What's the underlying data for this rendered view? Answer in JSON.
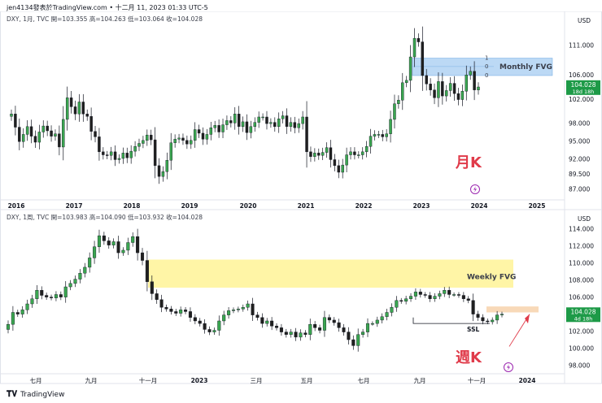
{
  "header": {
    "text": "jen4134發表於TradingView.com • 十二月 11, 2023 01:33 UTC-5"
  },
  "footer": {
    "brand": "TradingView"
  },
  "colors": {
    "up": "#26a69a",
    "upFill": "#3aa650",
    "down": "#1f1f1f",
    "lastBadge": "#1d9a47",
    "fvgMonthly": "#bcd9f5",
    "fvgWeekly": "#fff5a6",
    "annotation": "#e03b4a",
    "target": "#f8d9b8"
  },
  "chart_data": [
    {
      "type": "candlestick",
      "title": "DXY, 1月, TVC",
      "ohlc_label": "開=103.355 高=104.263 低=103.064 收=104.028",
      "axis_currency": "USD",
      "y_ticks": [
        "111.000",
        "106.000",
        "102.000",
        "98.000",
        "95.000",
        "92.000",
        "89.500",
        "87.000"
      ],
      "x_ticks": [
        "2016",
        "2017",
        "2018",
        "2019",
        "2020",
        "2021",
        "2022",
        "2023",
        "2024",
        "2025"
      ],
      "last_price": "104.028",
      "countdown": "18d 18h",
      "zone_label": "Monthly FVG",
      "fib_levels": [
        "1",
        "0",
        "0"
      ],
      "annotation": "月K",
      "close_series": [
        99.5,
        97.3,
        94.9,
        96.1,
        97.4,
        95.8,
        94.8,
        96.5,
        97.5,
        96.7,
        95.8,
        96.2,
        94.0,
        98.6,
        102.2,
        100.7,
        99.5,
        101.5,
        99.5,
        99.1,
        96.6,
        95.7,
        93.2,
        92.7,
        92.6,
        93.2,
        91.9,
        92.1,
        93.0,
        92.2,
        93.3,
        94.1,
        94.6,
        95.1,
        96.0,
        95.2,
        90.9,
        89.1,
        89.9,
        91.8,
        94.7,
        95.3,
        95.5,
        95.1,
        94.5,
        95.1,
        96.9,
        96.3,
        95.3,
        96.1,
        97.2,
        97.6,
        96.5,
        97.7,
        98.4,
        98.0,
        99.5,
        97.4,
        98.2,
        96.4,
        97.4,
        98.1,
        99.0,
        99.0,
        97.9,
        98.1,
        97.4,
        98.7,
        99.2,
        97.4,
        98.1,
        97.2,
        97.9,
        99.0,
        93.2,
        92.4,
        93.0,
        92.6,
        93.1,
        93.9,
        91.9,
        90.9,
        89.8,
        91.0,
        92.7,
        93.2,
        92.7,
        92.7,
        93.2,
        94.1,
        95.8,
        96.1,
        96.1,
        95.7,
        96.2,
        98.6,
        101.2,
        101.8,
        104.7,
        105.1,
        109.0,
        112.1,
        111.5,
        105.9,
        104.5,
        103.5,
        102.2,
        104.9,
        102.5,
        103.4,
        104.6,
        102.9,
        101.9,
        103.3,
        106.0,
        106.6,
        103.5,
        104.0
      ]
    },
    {
      "type": "candlestick",
      "title": "DXY, 1周, TVC",
      "ohlc_label": "開=103.983 高=104.090 低=103.932 收=104.028",
      "axis_currency": "USD",
      "y_ticks": [
        "114.000",
        "112.000",
        "110.000",
        "108.000",
        "106.000",
        "104.000",
        "102.000",
        "100.000",
        "98.000"
      ],
      "x_ticks": [
        "七月",
        "九月",
        "十一月",
        "2023",
        "三月",
        "五月",
        "七月",
        "九月",
        "十一月",
        "2024"
      ],
      "last_price": "104.028",
      "countdown": "4d 18h",
      "zone_label": "Weekly FVG",
      "ssl_label": "SSL",
      "annotation": "週K",
      "close_series": [
        102.8,
        104.2,
        104.0,
        104.5,
        105.2,
        105.8,
        106.8,
        106.2,
        106.0,
        105.9,
        106.3,
        106.0,
        107.2,
        107.6,
        108.1,
        108.8,
        109.5,
        110.6,
        111.9,
        113.2,
        112.6,
        112.1,
        112.5,
        111.2,
        111.5,
        112.4,
        113.1,
        111.2,
        110.3,
        107.8,
        106.4,
        105.7,
        104.8,
        104.6,
        104.3,
        104.1,
        104.5,
        104.3,
        103.6,
        103.2,
        102.9,
        102.2,
        101.9,
        102.1,
        103.2,
        103.9,
        104.4,
        104.5,
        104.6,
        104.8,
        105.2,
        103.9,
        103.6,
        102.9,
        103.2,
        102.6,
        102.4,
        101.9,
        101.6,
        101.9,
        101.3,
        101.8,
        101.6,
        102.8,
        102.4,
        102.1,
        103.6,
        103.3,
        103.0,
        102.4,
        101.9,
        101.0,
        100.3,
        101.6,
        101.9,
        102.9,
        102.9,
        103.3,
        103.7,
        104.2,
        104.8,
        105.6,
        105.5,
        105.8,
        106.1,
        106.6,
        106.3,
        106.2,
        105.8,
        106.1,
        106.4,
        106.8,
        106.3,
        106.3,
        106.2,
        105.8,
        105.6,
        104.0,
        103.6,
        103.2,
        103.1,
        103.3,
        103.9,
        104.0
      ]
    }
  ]
}
